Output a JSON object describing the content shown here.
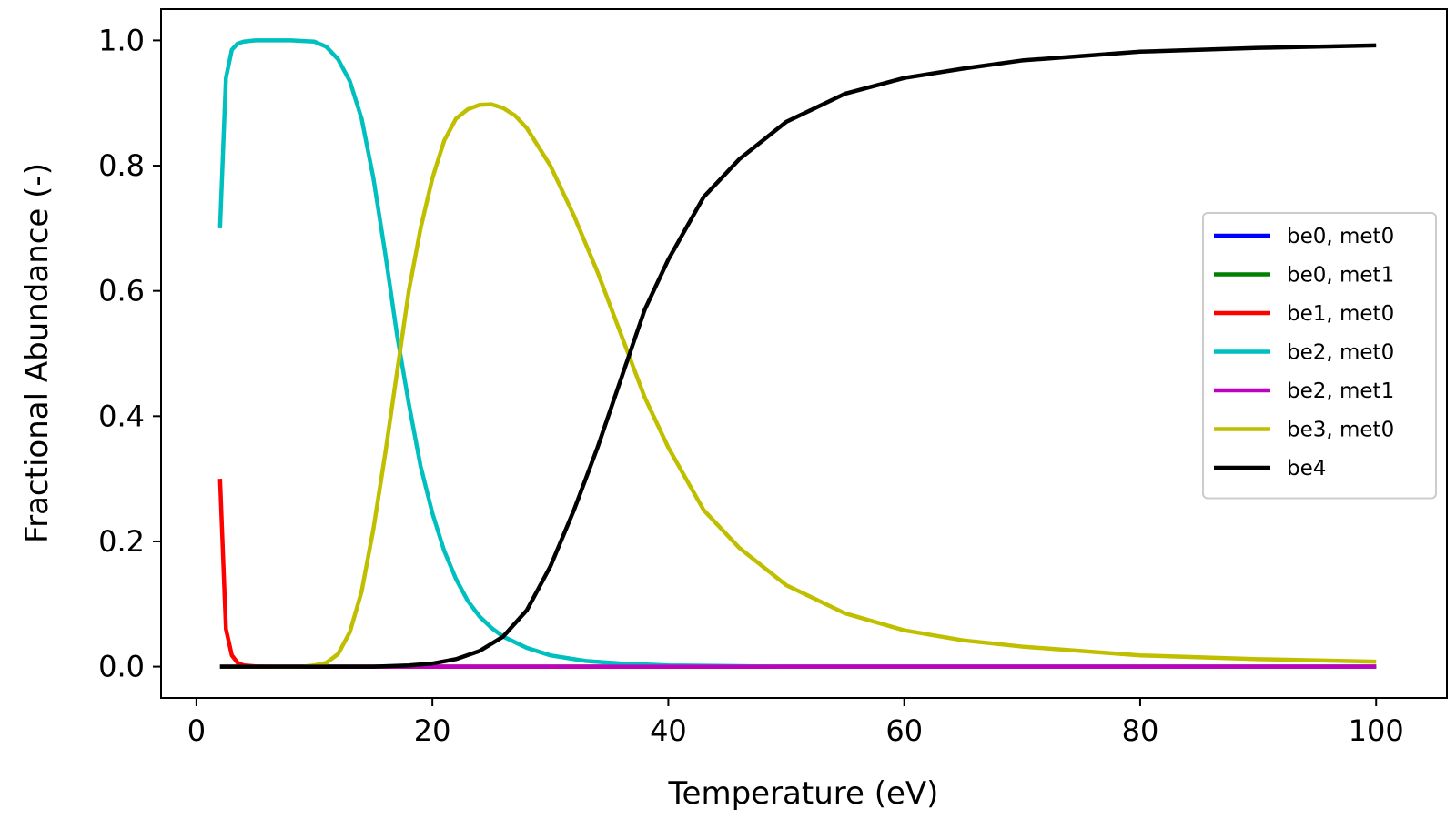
{
  "chart_data": {
    "type": "line",
    "title": "",
    "xlabel": "Temperature (eV)",
    "ylabel": "Fractional Abundance (-)",
    "xlim": [
      -3,
      106
    ],
    "ylim": [
      -0.05,
      1.05
    ],
    "xticks": [
      0,
      20,
      40,
      60,
      80,
      100
    ],
    "yticks": [
      0.0,
      0.2,
      0.4,
      0.6,
      0.8,
      1.0
    ],
    "xtick_labels": [
      "0",
      "20",
      "40",
      "60",
      "80",
      "100"
    ],
    "ytick_labels": [
      "0.0",
      "0.2",
      "0.4",
      "0.6",
      "0.8",
      "1.0"
    ],
    "grid": false,
    "legend": "center-right",
    "series": [
      {
        "name": "be0, met0",
        "color": "#0000ff",
        "x": [
          2,
          10,
          20,
          40,
          60,
          80,
          100
        ],
        "y": [
          0,
          0,
          0,
          0,
          0,
          0,
          0
        ]
      },
      {
        "name": "be0, met1",
        "color": "#008000",
        "x": [
          2,
          10,
          20,
          40,
          60,
          80,
          100
        ],
        "y": [
          0,
          0,
          0,
          0,
          0,
          0,
          0
        ]
      },
      {
        "name": "be1, met0",
        "color": "#ff0000",
        "x": [
          2,
          2.5,
          3,
          3.5,
          4,
          5,
          6,
          10,
          20,
          40,
          60,
          80,
          100
        ],
        "y": [
          0.3,
          0.06,
          0.018,
          0.006,
          0.002,
          0.0005,
          0,
          0,
          0,
          0,
          0,
          0,
          0
        ]
      },
      {
        "name": "be2, met0",
        "color": "#00bfbf",
        "x": [
          2,
          2.5,
          3,
          3.5,
          4,
          5,
          6,
          8,
          10,
          11,
          12,
          13,
          14,
          15,
          16,
          17,
          18,
          19,
          20,
          21,
          22,
          23,
          24,
          25,
          26,
          28,
          30,
          33,
          36,
          40,
          45,
          50,
          60,
          80,
          100
        ],
        "y": [
          0.7,
          0.94,
          0.985,
          0.995,
          0.998,
          1.0,
          1.0,
          1.0,
          0.998,
          0.99,
          0.97,
          0.935,
          0.875,
          0.78,
          0.66,
          0.53,
          0.42,
          0.32,
          0.245,
          0.185,
          0.14,
          0.105,
          0.08,
          0.062,
          0.048,
          0.03,
          0.018,
          0.009,
          0.005,
          0.002,
          0.001,
          0,
          0,
          0,
          0
        ]
      },
      {
        "name": "be2, met1",
        "color": "#bf00bf",
        "x": [
          2,
          10,
          20,
          40,
          60,
          80,
          100
        ],
        "y": [
          0,
          0,
          0,
          0,
          0,
          0,
          0
        ]
      },
      {
        "name": "be3, met0",
        "color": "#bfbf00",
        "x": [
          2,
          6,
          9,
          10,
          11,
          12,
          13,
          14,
          15,
          16,
          17,
          18,
          19,
          20,
          21,
          22,
          23,
          24,
          25,
          26,
          27,
          28,
          30,
          32,
          34,
          36,
          38,
          40,
          43,
          46,
          50,
          55,
          60,
          65,
          70,
          80,
          90,
          100
        ],
        "y": [
          0,
          0,
          0,
          0.002,
          0.006,
          0.02,
          0.055,
          0.12,
          0.22,
          0.34,
          0.47,
          0.6,
          0.7,
          0.78,
          0.84,
          0.875,
          0.89,
          0.897,
          0.898,
          0.892,
          0.88,
          0.86,
          0.8,
          0.72,
          0.63,
          0.53,
          0.43,
          0.35,
          0.25,
          0.19,
          0.13,
          0.085,
          0.058,
          0.042,
          0.032,
          0.018,
          0.012,
          0.008
        ]
      },
      {
        "name": "be4",
        "color": "#000000",
        "x": [
          2,
          10,
          15,
          18,
          20,
          22,
          24,
          26,
          28,
          30,
          32,
          34,
          36,
          38,
          40,
          43,
          46,
          50,
          55,
          60,
          65,
          70,
          80,
          90,
          100
        ],
        "y": [
          0,
          0,
          0,
          0.002,
          0.005,
          0.012,
          0.025,
          0.048,
          0.09,
          0.16,
          0.25,
          0.35,
          0.46,
          0.57,
          0.65,
          0.75,
          0.81,
          0.87,
          0.915,
          0.94,
          0.955,
          0.968,
          0.982,
          0.988,
          0.992
        ]
      }
    ]
  }
}
